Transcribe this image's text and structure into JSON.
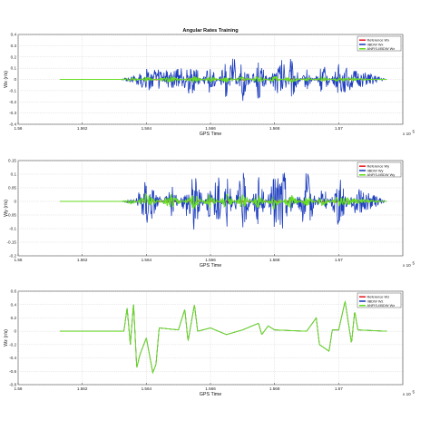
{
  "chart_data": [
    {
      "type": "line",
      "title": "Angular Rates Training",
      "xlabel": "GPS Time",
      "ylabel": "Wx (r/s)",
      "x_exponent_label": "x 10",
      "x_exponent": "5",
      "xlim": [
        1.56,
        1.572
      ],
      "ylim": [
        -0.4,
        0.4
      ],
      "x_ticks": [
        "1.56",
        "1.562",
        "1.564",
        "1.566",
        "1.568",
        "1.57"
      ],
      "y_ticks": [
        "0.4",
        "0.3",
        "0.2",
        "0.1",
        "0",
        "-0.1",
        "-0.2",
        "-0.3",
        "-0.4"
      ],
      "legend_position": "top-right",
      "grid": true,
      "series": [
        {
          "name": "Reference Wx",
          "color": "#e8202a",
          "x": [
            1.5613,
            1.5632,
            1.5636,
            1.5648,
            1.5655,
            1.566,
            1.5665,
            1.567,
            1.5675,
            1.568,
            1.5685,
            1.569,
            1.5695,
            1.57,
            1.5705,
            1.5715
          ],
          "values": [
            0,
            0,
            0,
            0.01,
            -0.01,
            0.01,
            -0.01,
            0.01,
            0,
            -0.01,
            0.01,
            0,
            -0.01,
            0.01,
            0,
            0
          ]
        },
        {
          "name": "IIBDW Wx",
          "color": "#1f3fbf",
          "x": [
            1.5613,
            1.5632,
            1.5636,
            1.564,
            1.5648,
            1.5655,
            1.566,
            1.5665,
            1.5667,
            1.567,
            1.5675,
            1.568,
            1.5683,
            1.5685,
            1.569,
            1.5695,
            1.57,
            1.5705,
            1.571,
            1.5715
          ],
          "values": [
            0,
            0,
            0.04,
            0.1,
            0.08,
            0.14,
            -0.15,
            0.18,
            -0.3,
            0.22,
            -0.19,
            0.12,
            0.2,
            -0.2,
            0.1,
            -0.15,
            0.14,
            0.08,
            0.05,
            0
          ]
        },
        {
          "name": "ANFIS-IIBDW Wx",
          "color": "#66dd22",
          "x": [
            1.5613,
            1.5632,
            1.5636,
            1.564,
            1.5648,
            1.5655,
            1.566,
            1.5665,
            1.567,
            1.5675,
            1.568,
            1.5685,
            1.569,
            1.5695,
            1.57,
            1.5705,
            1.5715
          ],
          "values": [
            0,
            0,
            0.02,
            -0.02,
            0.03,
            -0.03,
            0.03,
            -0.03,
            0.03,
            -0.03,
            0.03,
            -0.03,
            0.02,
            -0.02,
            0.02,
            0.01,
            0
          ]
        }
      ]
    },
    {
      "type": "line",
      "title": "",
      "xlabel": "GPS Time",
      "ylabel": "Wy (r/s)",
      "x_exponent_label": "x 10",
      "x_exponent": "5",
      "xlim": [
        1.56,
        1.572
      ],
      "ylim": [
        -0.2,
        0.15
      ],
      "x_ticks": [
        "1.56",
        "1.562",
        "1.564",
        "1.566",
        "1.568",
        "1.57"
      ],
      "y_ticks": [
        "0.15",
        "0.1",
        "0.05",
        "0",
        "-0.05",
        "-0.1",
        "-0.15",
        "-0.2"
      ],
      "legend_position": "top-right",
      "grid": true,
      "series": [
        {
          "name": "Reference Wy",
          "color": "#e8202a",
          "x": [
            1.5613,
            1.5632,
            1.5636,
            1.5648,
            1.5655,
            1.566,
            1.5665,
            1.567,
            1.5675,
            1.568,
            1.5685,
            1.569,
            1.5695,
            1.57,
            1.5705,
            1.5715
          ],
          "values": [
            0,
            0,
            0,
            0.005,
            -0.005,
            0.005,
            -0.005,
            0.005,
            0,
            -0.005,
            0.005,
            0,
            -0.005,
            0.005,
            0,
            0
          ]
        },
        {
          "name": "IIBDW Wy",
          "color": "#1f3fbf",
          "x": [
            1.5613,
            1.5632,
            1.5636,
            1.564,
            1.5648,
            1.5655,
            1.566,
            1.5662,
            1.5665,
            1.567,
            1.5675,
            1.568,
            1.5683,
            1.5685,
            1.569,
            1.5695,
            1.57,
            1.5705,
            1.571,
            1.5715
          ],
          "values": [
            0,
            0,
            0.01,
            -0.1,
            0.06,
            -0.12,
            0.08,
            -0.15,
            0.1,
            -0.12,
            0.1,
            -0.1,
            -0.14,
            0.06,
            -0.12,
            0.07,
            -0.1,
            0.05,
            0.03,
            0
          ]
        },
        {
          "name": "ANFIS-IIBDW Wy",
          "color": "#66dd22",
          "x": [
            1.5613,
            1.5632,
            1.5636,
            1.564,
            1.5648,
            1.5655,
            1.566,
            1.5665,
            1.567,
            1.5675,
            1.568,
            1.5685,
            1.569,
            1.5695,
            1.57,
            1.5705,
            1.5715
          ],
          "values": [
            0,
            0,
            0.01,
            -0.03,
            0.03,
            -0.03,
            0.03,
            -0.03,
            0.03,
            -0.03,
            0.03,
            -0.03,
            0.02,
            -0.02,
            0.02,
            0.01,
            0
          ]
        }
      ]
    },
    {
      "type": "line",
      "title": "",
      "xlabel": "GPS Time",
      "ylabel": "Wz (r/s)",
      "x_exponent_label": "x 10",
      "x_exponent": "5",
      "xlim": [
        1.56,
        1.572
      ],
      "ylim": [
        -0.8,
        0.6
      ],
      "x_ticks": [
        "1.56",
        "1.562",
        "1.564",
        "1.566",
        "1.568",
        "1.57"
      ],
      "y_ticks": [
        "0.6",
        "0.4",
        "0.2",
        "0",
        "-0.2",
        "-0.4",
        "-0.6",
        "-0.8"
      ],
      "legend_position": "top-right",
      "grid": true,
      "series": [
        {
          "name": "Reference Wz",
          "color": "#e8202a",
          "x": [
            1.5613,
            1.5633,
            1.5634,
            1.5635,
            1.5636,
            1.5637,
            1.5638,
            1.564,
            1.5642,
            1.5643,
            1.5644,
            1.565,
            1.5652,
            1.5653,
            1.5655,
            1.5656,
            1.566,
            1.5665,
            1.567,
            1.5675,
            1.5676,
            1.5678,
            1.568,
            1.569,
            1.5693,
            1.5694,
            1.5697,
            1.5698,
            1.57,
            1.5702,
            1.5704,
            1.5705,
            1.5706,
            1.5715
          ],
          "values": [
            0,
            0,
            0.35,
            -0.2,
            0.42,
            -0.55,
            -0.35,
            -0.1,
            -0.62,
            -0.5,
            0.05,
            0.02,
            0.33,
            -0.15,
            0.4,
            0,
            0.05,
            -0.05,
            0.02,
            0.12,
            -0.05,
            0.08,
            0.02,
            0,
            0.2,
            -0.2,
            -0.3,
            0.02,
            0.02,
            0.45,
            -0.18,
            0.3,
            0.02,
            0
          ]
        },
        {
          "name": "IIBDW Wz",
          "color": "#1f3fbf",
          "x": [
            1.5613,
            1.5633,
            1.5634,
            1.5635,
            1.5636,
            1.5637,
            1.5638,
            1.564,
            1.5642,
            1.5643,
            1.5644,
            1.565,
            1.5652,
            1.5653,
            1.5655,
            1.5656,
            1.566,
            1.5665,
            1.567,
            1.5675,
            1.5676,
            1.5678,
            1.568,
            1.569,
            1.5693,
            1.5694,
            1.5697,
            1.5698,
            1.57,
            1.5702,
            1.5704,
            1.5705,
            1.5706,
            1.5715
          ],
          "values": [
            0,
            0,
            0.35,
            -0.2,
            0.42,
            -0.55,
            -0.35,
            -0.1,
            -0.62,
            -0.5,
            0.05,
            0.02,
            0.33,
            -0.15,
            0.4,
            0,
            0.05,
            -0.05,
            0.02,
            0.12,
            -0.05,
            0.08,
            0.02,
            0,
            0.2,
            -0.2,
            -0.3,
            0.02,
            0.02,
            0.45,
            -0.18,
            0.3,
            0.02,
            0
          ]
        },
        {
          "name": "ANFIS-IIBDW Wz",
          "color": "#66dd22",
          "x": [
            1.5613,
            1.5633,
            1.5634,
            1.5635,
            1.5636,
            1.5637,
            1.5638,
            1.564,
            1.5642,
            1.5643,
            1.5644,
            1.565,
            1.5652,
            1.5653,
            1.5655,
            1.5656,
            1.566,
            1.5665,
            1.567,
            1.5675,
            1.5676,
            1.5678,
            1.568,
            1.569,
            1.5693,
            1.5694,
            1.5697,
            1.5698,
            1.57,
            1.5702,
            1.5704,
            1.5705,
            1.5706,
            1.5715
          ],
          "values": [
            0,
            0,
            0.35,
            -0.2,
            0.42,
            -0.55,
            -0.35,
            -0.1,
            -0.62,
            -0.5,
            0.05,
            0.02,
            0.33,
            -0.15,
            0.4,
            0,
            0.05,
            -0.05,
            0.02,
            0.12,
            -0.05,
            0.08,
            0.02,
            0,
            0.2,
            -0.2,
            -0.3,
            0.02,
            0.02,
            0.45,
            -0.18,
            0.3,
            0.02,
            0
          ]
        }
      ]
    }
  ]
}
